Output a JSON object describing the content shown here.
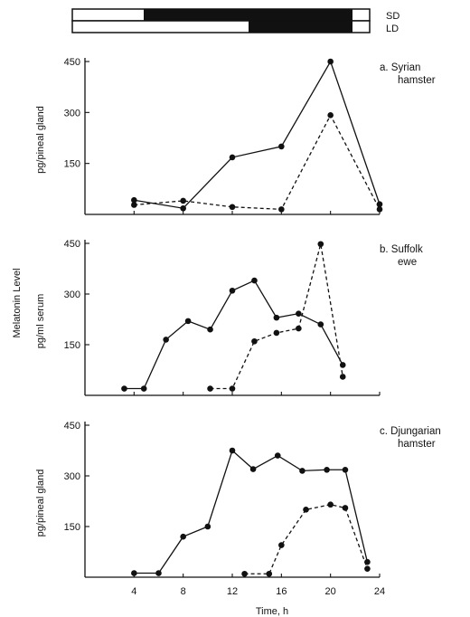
{
  "photoperiod": {
    "sd_label": "SD",
    "ld_label": "LD"
  },
  "shared_axis": {
    "xlabel": "Time, h",
    "xticks": [
      4,
      8,
      12,
      16,
      20,
      24
    ],
    "ylabel_shared": "Melatonin Level",
    "yticks": [
      150,
      300,
      450
    ]
  },
  "chart_data": [
    {
      "type": "line",
      "panel_label": [
        "a. Syrian",
        "hamster"
      ],
      "ylabel": "pg/pineal gland",
      "xlim": [
        0,
        24
      ],
      "ylim": [
        0,
        450
      ],
      "series": [
        {
          "style": "solid",
          "points": [
            [
              4,
              42
            ],
            [
              8,
              18
            ],
            [
              12,
              168
            ],
            [
              16,
              200
            ],
            [
              20,
              450
            ],
            [
              24,
              30
            ]
          ]
        },
        {
          "style": "dashed",
          "points": [
            [
              4,
              28
            ],
            [
              8,
              40
            ],
            [
              12,
              22
            ],
            [
              16,
              15
            ],
            [
              20,
              292
            ],
            [
              24,
              15
            ]
          ]
        }
      ]
    },
    {
      "type": "line",
      "panel_label": [
        "b. Suffolk",
        "ewe"
      ],
      "ylabel": "pg/ml serum",
      "xlim": [
        0,
        24
      ],
      "ylim": [
        0,
        450
      ],
      "series": [
        {
          "style": "solid",
          "points": [
            [
              3.2,
              20
            ],
            [
              4.8,
              20
            ],
            [
              6.6,
              165
            ],
            [
              8.4,
              220
            ],
            [
              10.2,
              195
            ],
            [
              12,
              310
            ],
            [
              13.8,
              340
            ],
            [
              15.6,
              230
            ],
            [
              17.4,
              242
            ],
            [
              19.2,
              210
            ],
            [
              21,
              90
            ]
          ]
        },
        {
          "style": "dashed",
          "points": [
            [
              10.2,
              20
            ],
            [
              12,
              20
            ],
            [
              13.8,
              160
            ],
            [
              15.6,
              185
            ],
            [
              17.4,
              198
            ],
            [
              19.2,
              448
            ],
            [
              21,
              55
            ]
          ]
        }
      ]
    },
    {
      "type": "line",
      "panel_label": [
        "c. Djungarian",
        "hamster"
      ],
      "ylabel": "pg/pineal gland",
      "xlim": [
        0,
        24
      ],
      "ylim": [
        0,
        450
      ],
      "series": [
        {
          "style": "solid",
          "points": [
            [
              4,
              12
            ],
            [
              6,
              12
            ],
            [
              8,
              120
            ],
            [
              10,
              150
            ],
            [
              12,
              375
            ],
            [
              13.7,
              320
            ],
            [
              15.7,
              360
            ],
            [
              17.7,
              315
            ],
            [
              19.7,
              318
            ],
            [
              21.2,
              318
            ],
            [
              23,
              45
            ]
          ]
        },
        {
          "style": "dashed",
          "points": [
            [
              13,
              10
            ],
            [
              15,
              10
            ],
            [
              16,
              95
            ],
            [
              18,
              200
            ],
            [
              20,
              215
            ],
            [
              21.2,
              205
            ],
            [
              23,
              25
            ]
          ]
        }
      ]
    }
  ]
}
